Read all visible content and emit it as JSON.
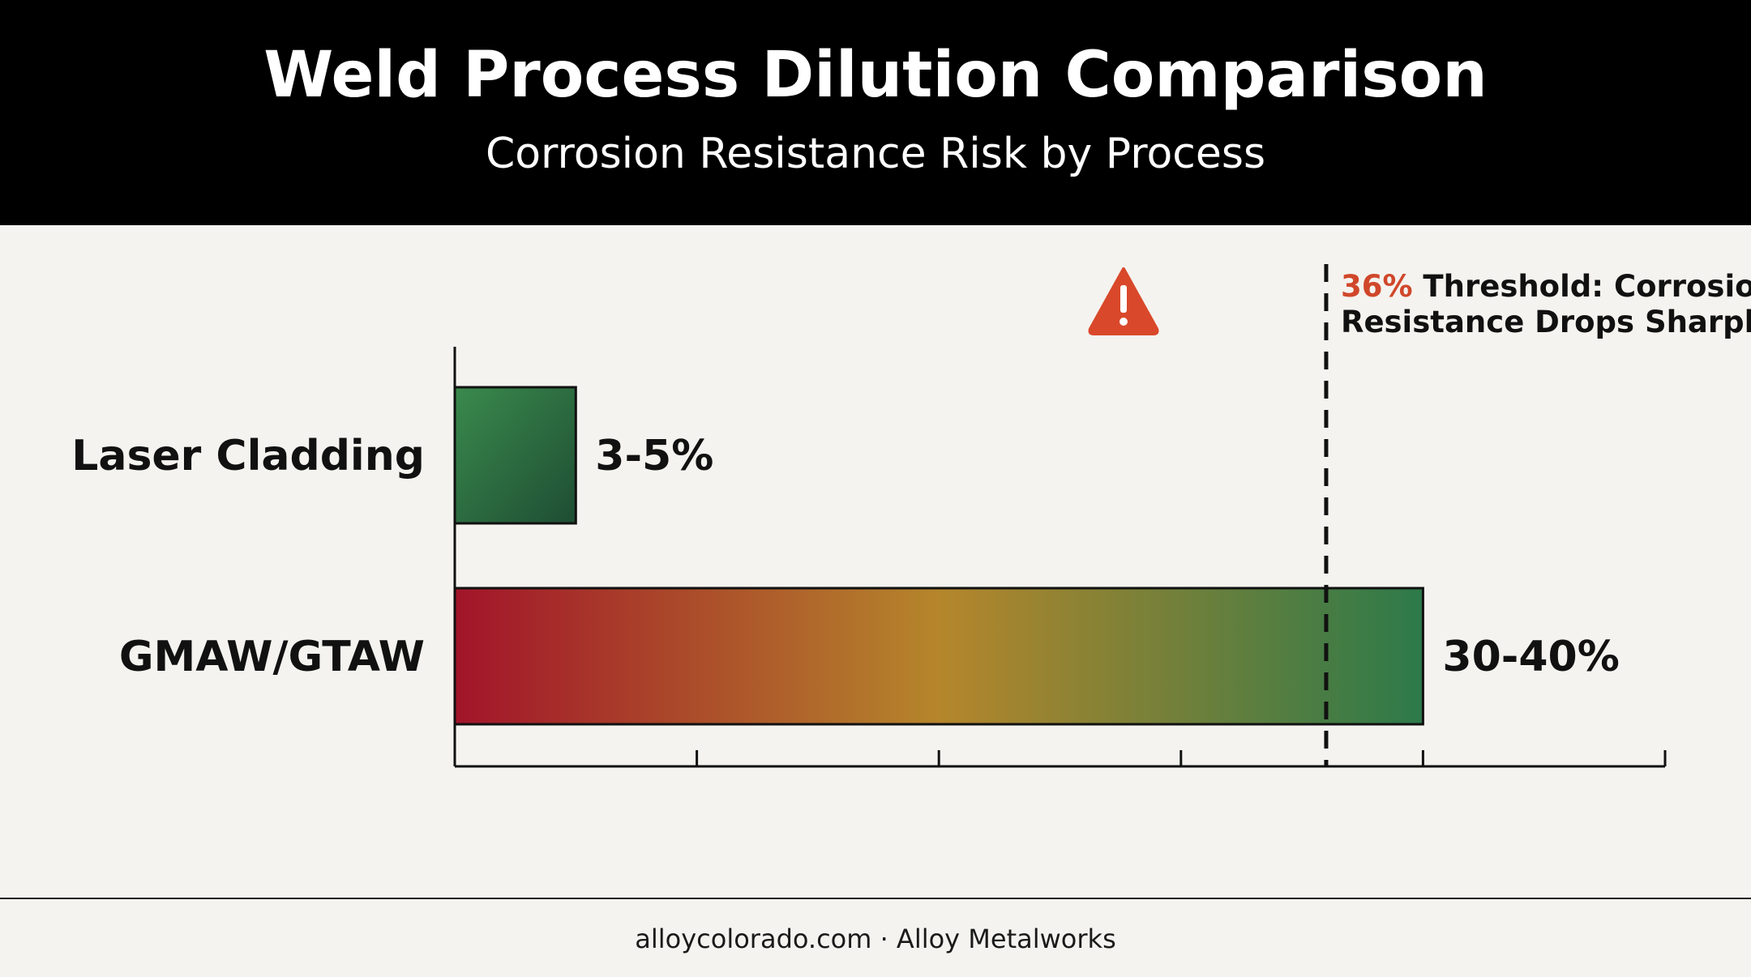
{
  "header": {
    "title": "Weld Process Dilution Comparison",
    "subtitle": "Corrosion Resistance Risk by Process"
  },
  "chart_data": {
    "type": "bar",
    "orientation": "horizontal",
    "categories": [
      "Laser Cladding",
      "GMAW/GTAW"
    ],
    "ranges": [
      [
        3,
        5
      ],
      [
        30,
        40
      ]
    ],
    "values": [
      5,
      40
    ],
    "value_labels": [
      "3-5%",
      "30-40%"
    ],
    "xlim": [
      0,
      50
    ],
    "x_tick_values": [
      0,
      10,
      20,
      30,
      40,
      50
    ],
    "grid": false,
    "threshold": {
      "value": 36,
      "label_value": "36%",
      "label_text_line1": " Threshold: Corrosion",
      "label_text_line2": "Resistance Drops Sharply",
      "icon": "warning-triangle-icon"
    },
    "colors": {
      "laser_gradient": [
        "#3a8a4d",
        "#1e4d33"
      ],
      "gmaw_gradient": [
        "#a2142a",
        "#b5862b",
        "#2c7a4a"
      ],
      "threshold_value": "#d0472a",
      "warning_icon": "#d9482a"
    }
  },
  "footer": {
    "site": "alloycolorado.com",
    "separator": " · ",
    "company": "Alloy Metalworks"
  }
}
